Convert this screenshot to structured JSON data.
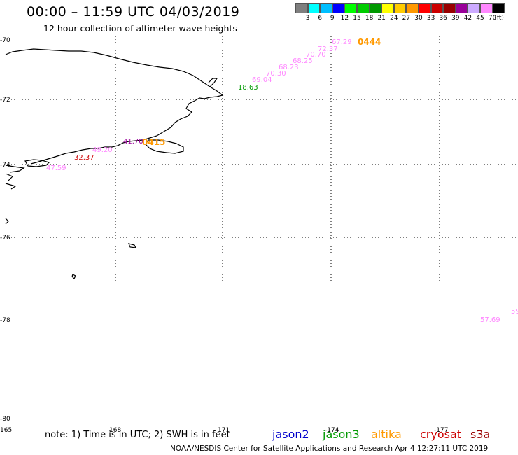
{
  "title": "00:00 – 11:59 UTC 04/03/2019",
  "subtitle": "12 hour collection of altimeter wave heights",
  "legend": {
    "unit": "(ft)",
    "items": [
      {
        "color": "#7f7f7f",
        "label": "3"
      },
      {
        "color": "#00ffff",
        "label": "6"
      },
      {
        "color": "#00bfff",
        "label": "9"
      },
      {
        "color": "#0000ff",
        "label": "12"
      },
      {
        "color": "#00ff00",
        "label": "15"
      },
      {
        "color": "#00cc00",
        "label": "18"
      },
      {
        "color": "#009900",
        "label": "21"
      },
      {
        "color": "#ffff00",
        "label": "24"
      },
      {
        "color": "#ffcc00",
        "label": "27"
      },
      {
        "color": "#ff9900",
        "label": "30"
      },
      {
        "color": "#ff0000",
        "label": "33"
      },
      {
        "color": "#cc0000",
        "label": "36"
      },
      {
        "color": "#990000",
        "label": "39"
      },
      {
        "color": "#990099",
        "label": "42"
      },
      {
        "color": "#ccaaff",
        "label": "45"
      },
      {
        "color": "#ff88ff",
        "label": "70"
      },
      {
        "color": "#000000",
        "label": ""
      }
    ]
  },
  "latitudes": [
    "-70",
    "-72",
    "-74",
    "-76",
    "-78",
    "-80"
  ],
  "longitudes": [
    "165",
    "168",
    "171",
    "-174",
    "-177"
  ],
  "observations": [
    {
      "value": "67.29",
      "color": "#ff88ff"
    },
    {
      "value": "72.37",
      "color": "#ff88ff"
    },
    {
      "value": "70.70",
      "color": "#ff88ff"
    },
    {
      "value": "68.25",
      "color": "#ff88ff"
    },
    {
      "value": "68.23",
      "color": "#ff88ff"
    },
    {
      "value": "70.30",
      "color": "#ff88ff"
    },
    {
      "value": "69.04",
      "color": "#ff88ff"
    },
    {
      "value": "18.63",
      "color": "#009900"
    },
    {
      "value": "41.70",
      "color": "#990099"
    },
    {
      "value": "49.20",
      "color": "#ff88ff"
    },
    {
      "value": "32.37",
      "color": "#cc0000"
    },
    {
      "value": "47.59",
      "color": "#ff88ff"
    },
    {
      "value": "57.69",
      "color": "#ff88ff"
    },
    {
      "value": "59",
      "color": "#ff88ff"
    }
  ],
  "pass_times": [
    {
      "time": "0444",
      "color": "#ff9900"
    },
    {
      "time": "0415",
      "color": "#ff9900"
    }
  ],
  "note": "note: 1) Time is in UTC; 2) SWH is in feet",
  "satellites": [
    {
      "name": "jason2",
      "color": "#0000cc"
    },
    {
      "name": "jason3",
      "color": "#009900"
    },
    {
      "name": "altika",
      "color": "#ff9900"
    },
    {
      "name": "cryosat",
      "color": "#cc0000"
    },
    {
      "name": "s3a",
      "color": "#990000"
    }
  ],
  "footer": "NOAA/NESDIS Center for Satellite Applications and Research    Apr  4 12:27:11 UTC 2019"
}
